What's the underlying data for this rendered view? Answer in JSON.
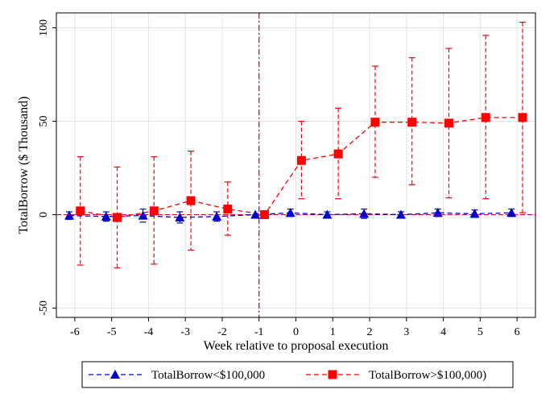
{
  "chart_data": {
    "type": "line",
    "xlabel": "Week relative to proposal execution",
    "ylabel": "TotalBorrow ($ Thousand)",
    "xticks": [
      -6,
      -5,
      -4,
      -3,
      -2,
      -1,
      0,
      1,
      2,
      3,
      4,
      5,
      6
    ],
    "yticks": [
      -50,
      0,
      50,
      100
    ],
    "xlim": [
      -6.5,
      6.5
    ],
    "ylim": [
      -55,
      108
    ],
    "event_line_x": -1,
    "zero_reference_line": true,
    "grid": "horizontal and vertical light gray",
    "legend_position": "bottom",
    "series": [
      {
        "name": "TotalBorrow<$100,000",
        "color": "#0000cc",
        "marker": "triangle",
        "line_style": "dashed",
        "x_offset": -0.15,
        "points": [
          {
            "x": -6,
            "y": -0.5,
            "lo": -2.5,
            "hi": 1.5
          },
          {
            "x": -5,
            "y": -1.0,
            "lo": -3.5,
            "hi": 1.5
          },
          {
            "x": -4,
            "y": -0.5,
            "lo": -4.0,
            "hi": 3.0
          },
          {
            "x": -3,
            "y": -1.5,
            "lo": -4.5,
            "hi": 1.5
          },
          {
            "x": -2,
            "y": -1.0,
            "lo": -3.5,
            "hi": 1.5
          },
          {
            "x": -1,
            "y": 0.0,
            "lo": 0.0,
            "hi": 0.0
          },
          {
            "x": 0,
            "y": 1.0,
            "lo": -1.0,
            "hi": 3.0
          },
          {
            "x": 1,
            "y": 0.0,
            "lo": -1.5,
            "hi": 1.5
          },
          {
            "x": 2,
            "y": 0.5,
            "lo": -2.0,
            "hi": 3.0
          },
          {
            "x": 3,
            "y": 0.0,
            "lo": -1.5,
            "hi": 1.5
          },
          {
            "x": 4,
            "y": 1.0,
            "lo": -1.0,
            "hi": 3.0
          },
          {
            "x": 5,
            "y": 0.5,
            "lo": -1.5,
            "hi": 2.5
          },
          {
            "x": 6,
            "y": 1.0,
            "lo": -1.0,
            "hi": 3.0
          }
        ]
      },
      {
        "name": "TotalBorrow>$100,000)",
        "color": "#ff0000",
        "marker": "square",
        "line_style": "dashed",
        "x_offset": 0.15,
        "points": [
          {
            "x": -6,
            "y": 2,
            "lo": -27,
            "hi": 31
          },
          {
            "x": -5,
            "y": -1.5,
            "lo": -28.5,
            "hi": 25.5
          },
          {
            "x": -4,
            "y": 2,
            "lo": -26.5,
            "hi": 31
          },
          {
            "x": -3,
            "y": 7.5,
            "lo": -19,
            "hi": 34
          },
          {
            "x": -2,
            "y": 3,
            "lo": -11,
            "hi": 17.5
          },
          {
            "x": -1,
            "y": 0,
            "lo": 0,
            "hi": 0
          },
          {
            "x": 0,
            "y": 29,
            "lo": 8.5,
            "hi": 50
          },
          {
            "x": 1,
            "y": 32.5,
            "lo": 8.5,
            "hi": 57
          },
          {
            "x": 2,
            "y": 49.5,
            "lo": 20,
            "hi": 79.5
          },
          {
            "x": 3,
            "y": 49.5,
            "lo": 16,
            "hi": 84
          },
          {
            "x": 4,
            "y": 49,
            "lo": 9,
            "hi": 89
          },
          {
            "x": 5,
            "y": 52,
            "lo": 8.5,
            "hi": 96
          },
          {
            "x": 6,
            "y": 52,
            "lo": 1,
            "hi": 103
          }
        ]
      }
    ]
  }
}
